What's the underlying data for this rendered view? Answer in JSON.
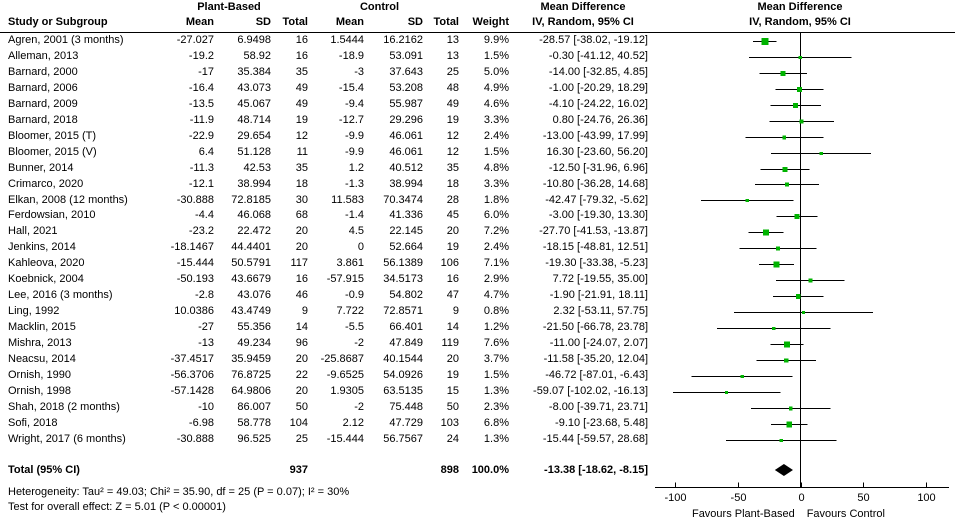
{
  "headers": {
    "group_plant": "Plant-Based",
    "group_control": "Control",
    "study": "Study or Subgroup",
    "mean": "Mean",
    "sd": "SD",
    "total": "Total",
    "weight": "Weight",
    "md_title": "Mean Difference",
    "md_sub": "IV, Random, 95% CI",
    "plot_title": "Mean Difference",
    "plot_sub": "IV, Random, 95% CI"
  },
  "chart_data": {
    "type": "forest",
    "x_ticks": [
      -100,
      -50,
      0,
      50,
      100
    ],
    "xlim": [
      -116,
      119
    ],
    "favours_left": "Favours Plant-Based",
    "favours_right": "Favours Control",
    "marker_color": "#00b300",
    "diamond_color": "#000000",
    "line_color": "#000000",
    "studies": [
      {
        "study": "Agren, 2001 (3 months)",
        "pb_mean": "-27.027",
        "pb_sd": "6.9498",
        "pb_total": "16",
        "c_mean": "1.5444",
        "c_sd": "16.2162",
        "c_total": "13",
        "weight": "9.9%",
        "ci": "-28.57 [-38.02, -19.12]",
        "md": -28.57,
        "lo": -38.02,
        "hi": -19.12,
        "w": 9.9
      },
      {
        "study": "Alleman, 2013",
        "pb_mean": "-19.2",
        "pb_sd": "58.92",
        "pb_total": "16",
        "c_mean": "-18.9",
        "c_sd": "53.091",
        "c_total": "13",
        "weight": "1.5%",
        "ci": "-0.30 [-41.12, 40.52]",
        "md": -0.3,
        "lo": -41.12,
        "hi": 40.52,
        "w": 1.5
      },
      {
        "study": "Barnard, 2000",
        "pb_mean": "-17",
        "pb_sd": "35.384",
        "pb_total": "35",
        "c_mean": "-3",
        "c_sd": "37.643",
        "c_total": "25",
        "weight": "5.0%",
        "ci": "-14.00 [-32.85, 4.85]",
        "md": -14.0,
        "lo": -32.85,
        "hi": 4.85,
        "w": 5.0
      },
      {
        "study": "Barnard, 2006",
        "pb_mean": "-16.4",
        "pb_sd": "43.073",
        "pb_total": "49",
        "c_mean": "-15.4",
        "c_sd": "53.208",
        "c_total": "48",
        "weight": "4.9%",
        "ci": "-1.00 [-20.29, 18.29]",
        "md": -1.0,
        "lo": -20.29,
        "hi": 18.29,
        "w": 4.9
      },
      {
        "study": "Barnard, 2009",
        "pb_mean": "-13.5",
        "pb_sd": "45.067",
        "pb_total": "49",
        "c_mean": "-9.4",
        "c_sd": "55.987",
        "c_total": "49",
        "weight": "4.6%",
        "ci": "-4.10 [-24.22, 16.02]",
        "md": -4.1,
        "lo": -24.22,
        "hi": 16.02,
        "w": 4.6
      },
      {
        "study": "Barnard, 2018",
        "pb_mean": "-11.9",
        "pb_sd": "48.714",
        "pb_total": "19",
        "c_mean": "-12.7",
        "c_sd": "29.296",
        "c_total": "19",
        "weight": "3.3%",
        "ci": "0.80 [-24.76, 26.36]",
        "md": 0.8,
        "lo": -24.76,
        "hi": 26.36,
        "w": 3.3
      },
      {
        "study": "Bloomer, 2015 (T)",
        "pb_mean": "-22.9",
        "pb_sd": "29.654",
        "pb_total": "12",
        "c_mean": "-9.9",
        "c_sd": "46.061",
        "c_total": "12",
        "weight": "2.4%",
        "ci": "-13.00 [-43.99, 17.99]",
        "md": -13.0,
        "lo": -43.99,
        "hi": 17.99,
        "w": 2.4
      },
      {
        "study": "Bloomer, 2015 (V)",
        "pb_mean": "6.4",
        "pb_sd": "51.128",
        "pb_total": "11",
        "c_mean": "-9.9",
        "c_sd": "46.061",
        "c_total": "12",
        "weight": "1.5%",
        "ci": "16.30 [-23.60, 56.20]",
        "md": 16.3,
        "lo": -23.6,
        "hi": 56.2,
        "w": 1.5
      },
      {
        "study": "Bunner, 2014",
        "pb_mean": "-11.3",
        "pb_sd": "42.53",
        "pb_total": "35",
        "c_mean": "1.2",
        "c_sd": "40.512",
        "c_total": "35",
        "weight": "4.8%",
        "ci": "-12.50 [-31.96, 6.96]",
        "md": -12.5,
        "lo": -31.96,
        "hi": 6.96,
        "w": 4.8
      },
      {
        "study": "Crimarco, 2020",
        "pb_mean": "-12.1",
        "pb_sd": "38.994",
        "pb_total": "18",
        "c_mean": "-1.3",
        "c_sd": "38.994",
        "c_total": "18",
        "weight": "3.3%",
        "ci": "-10.80 [-36.28, 14.68]",
        "md": -10.8,
        "lo": -36.28,
        "hi": 14.68,
        "w": 3.3
      },
      {
        "study": "Elkan, 2008 (12 months)",
        "pb_mean": "-30.888",
        "pb_sd": "72.8185",
        "pb_total": "30",
        "c_mean": "11.583",
        "c_sd": "70.3474",
        "c_total": "28",
        "weight": "1.8%",
        "ci": "-42.47 [-79.32, -5.62]",
        "md": -42.47,
        "lo": -79.32,
        "hi": -5.62,
        "w": 1.8
      },
      {
        "study": "Ferdowsian, 2010",
        "pb_mean": "-4.4",
        "pb_sd": "46.068",
        "pb_total": "68",
        "c_mean": "-1.4",
        "c_sd": "41.336",
        "c_total": "45",
        "weight": "6.0%",
        "ci": "-3.00 [-19.30, 13.30]",
        "md": -3.0,
        "lo": -19.3,
        "hi": 13.3,
        "w": 6.0
      },
      {
        "study": "Hall, 2021",
        "pb_mean": "-23.2",
        "pb_sd": "22.472",
        "pb_total": "20",
        "c_mean": "4.5",
        "c_sd": "22.145",
        "c_total": "20",
        "weight": "7.2%",
        "ci": "-27.70 [-41.53, -13.87]",
        "md": -27.7,
        "lo": -41.53,
        "hi": -13.87,
        "w": 7.2
      },
      {
        "study": "Jenkins, 2014",
        "pb_mean": "-18.1467",
        "pb_sd": "44.4401",
        "pb_total": "20",
        "c_mean": "0",
        "c_sd": "52.664",
        "c_total": "19",
        "weight": "2.4%",
        "ci": "-18.15 [-48.81, 12.51]",
        "md": -18.15,
        "lo": -48.81,
        "hi": 12.51,
        "w": 2.4
      },
      {
        "study": "Kahleova, 2020",
        "pb_mean": "-15.444",
        "pb_sd": "50.5791",
        "pb_total": "117",
        "c_mean": "3.861",
        "c_sd": "56.1389",
        "c_total": "106",
        "weight": "7.1%",
        "ci": "-19.30 [-33.38, -5.23]",
        "md": -19.3,
        "lo": -33.38,
        "hi": -5.23,
        "w": 7.1
      },
      {
        "study": "Koebnick, 2004",
        "pb_mean": "-50.193",
        "pb_sd": "43.6679",
        "pb_total": "16",
        "c_mean": "-57.915",
        "c_sd": "34.5173",
        "c_total": "16",
        "weight": "2.9%",
        "ci": "7.72 [-19.55, 35.00]",
        "md": 7.72,
        "lo": -19.55,
        "hi": 35.0,
        "w": 2.9
      },
      {
        "study": "Lee, 2016 (3 months)",
        "pb_mean": "-2.8",
        "pb_sd": "43.076",
        "pb_total": "46",
        "c_mean": "-0.9",
        "c_sd": "54.802",
        "c_total": "47",
        "weight": "4.7%",
        "ci": "-1.90 [-21.91, 18.11]",
        "md": -1.9,
        "lo": -21.91,
        "hi": 18.11,
        "w": 4.7
      },
      {
        "study": "Ling, 1992",
        "pb_mean": "10.0386",
        "pb_sd": "43.4749",
        "pb_total": "9",
        "c_mean": "7.722",
        "c_sd": "72.8571",
        "c_total": "9",
        "weight": "0.8%",
        "ci": "2.32 [-53.11, 57.75]",
        "md": 2.32,
        "lo": -53.11,
        "hi": 57.75,
        "w": 0.8
      },
      {
        "study": "Macklin, 2015",
        "pb_mean": "-27",
        "pb_sd": "55.356",
        "pb_total": "14",
        "c_mean": "-5.5",
        "c_sd": "66.401",
        "c_total": "14",
        "weight": "1.2%",
        "ci": "-21.50 [-66.78, 23.78]",
        "md": -21.5,
        "lo": -66.78,
        "hi": 23.78,
        "w": 1.2
      },
      {
        "study": "Mishra, 2013",
        "pb_mean": "-13",
        "pb_sd": "49.234",
        "pb_total": "96",
        "c_mean": "-2",
        "c_sd": "47.849",
        "c_total": "119",
        "weight": "7.6%",
        "ci": "-11.00 [-24.07, 2.07]",
        "md": -11.0,
        "lo": -24.07,
        "hi": 2.07,
        "w": 7.6
      },
      {
        "study": "Neacsu, 2014",
        "pb_mean": "-37.4517",
        "pb_sd": "35.9459",
        "pb_total": "20",
        "c_mean": "-25.8687",
        "c_sd": "40.1544",
        "c_total": "20",
        "weight": "3.7%",
        "ci": "-11.58 [-35.20, 12.04]",
        "md": -11.58,
        "lo": -35.2,
        "hi": 12.04,
        "w": 3.7
      },
      {
        "study": "Ornish, 1990",
        "pb_mean": "-56.3706",
        "pb_sd": "76.8725",
        "pb_total": "22",
        "c_mean": "-9.6525",
        "c_sd": "54.0926",
        "c_total": "19",
        "weight": "1.5%",
        "ci": "-46.72 [-87.01, -6.43]",
        "md": -46.72,
        "lo": -87.01,
        "hi": -6.43,
        "w": 1.5
      },
      {
        "study": "Ornish, 1998",
        "pb_mean": "-57.1428",
        "pb_sd": "64.9806",
        "pb_total": "20",
        "c_mean": "1.9305",
        "c_sd": "63.5135",
        "c_total": "15",
        "weight": "1.3%",
        "ci": "-59.07 [-102.02, -16.13]",
        "md": -59.07,
        "lo": -102.02,
        "hi": -16.13,
        "w": 1.3
      },
      {
        "study": "Shah, 2018 (2 months)",
        "pb_mean": "-10",
        "pb_sd": "86.007",
        "pb_total": "50",
        "c_mean": "-2",
        "c_sd": "75.448",
        "c_total": "50",
        "weight": "2.3%",
        "ci": "-8.00 [-39.71, 23.71]",
        "md": -8.0,
        "lo": -39.71,
        "hi": 23.71,
        "w": 2.3
      },
      {
        "study": "Sofi, 2018",
        "pb_mean": "-6.98",
        "pb_sd": "58.778",
        "pb_total": "104",
        "c_mean": "2.12",
        "c_sd": "47.729",
        "c_total": "103",
        "weight": "6.8%",
        "ci": "-9.10 [-23.68, 5.48]",
        "md": -9.1,
        "lo": -23.68,
        "hi": 5.48,
        "w": 6.8
      },
      {
        "study": "Wright, 2017 (6 months)",
        "pb_mean": "-30.888",
        "pb_sd": "96.525",
        "pb_total": "25",
        "c_mean": "-15.444",
        "c_sd": "56.7567",
        "c_total": "24",
        "weight": "1.3%",
        "ci": "-15.44 [-59.57, 28.68]",
        "md": -15.44,
        "lo": -59.57,
        "hi": 28.68,
        "w": 1.3
      }
    ],
    "total": {
      "label": "Total (95% CI)",
      "pb_total": "937",
      "c_total": "898",
      "weight": "100.0%",
      "ci": "-13.38 [-18.62, -8.15]",
      "md": -13.38,
      "lo": -18.62,
      "hi": -8.15
    }
  },
  "footer": {
    "heterogeneity": "Heterogeneity: Tau² = 49.03; Chi² = 35.90, df = 25 (P = 0.07); I² = 30%",
    "overall": "Test for overall effect: Z = 5.01 (P < 0.00001)"
  }
}
